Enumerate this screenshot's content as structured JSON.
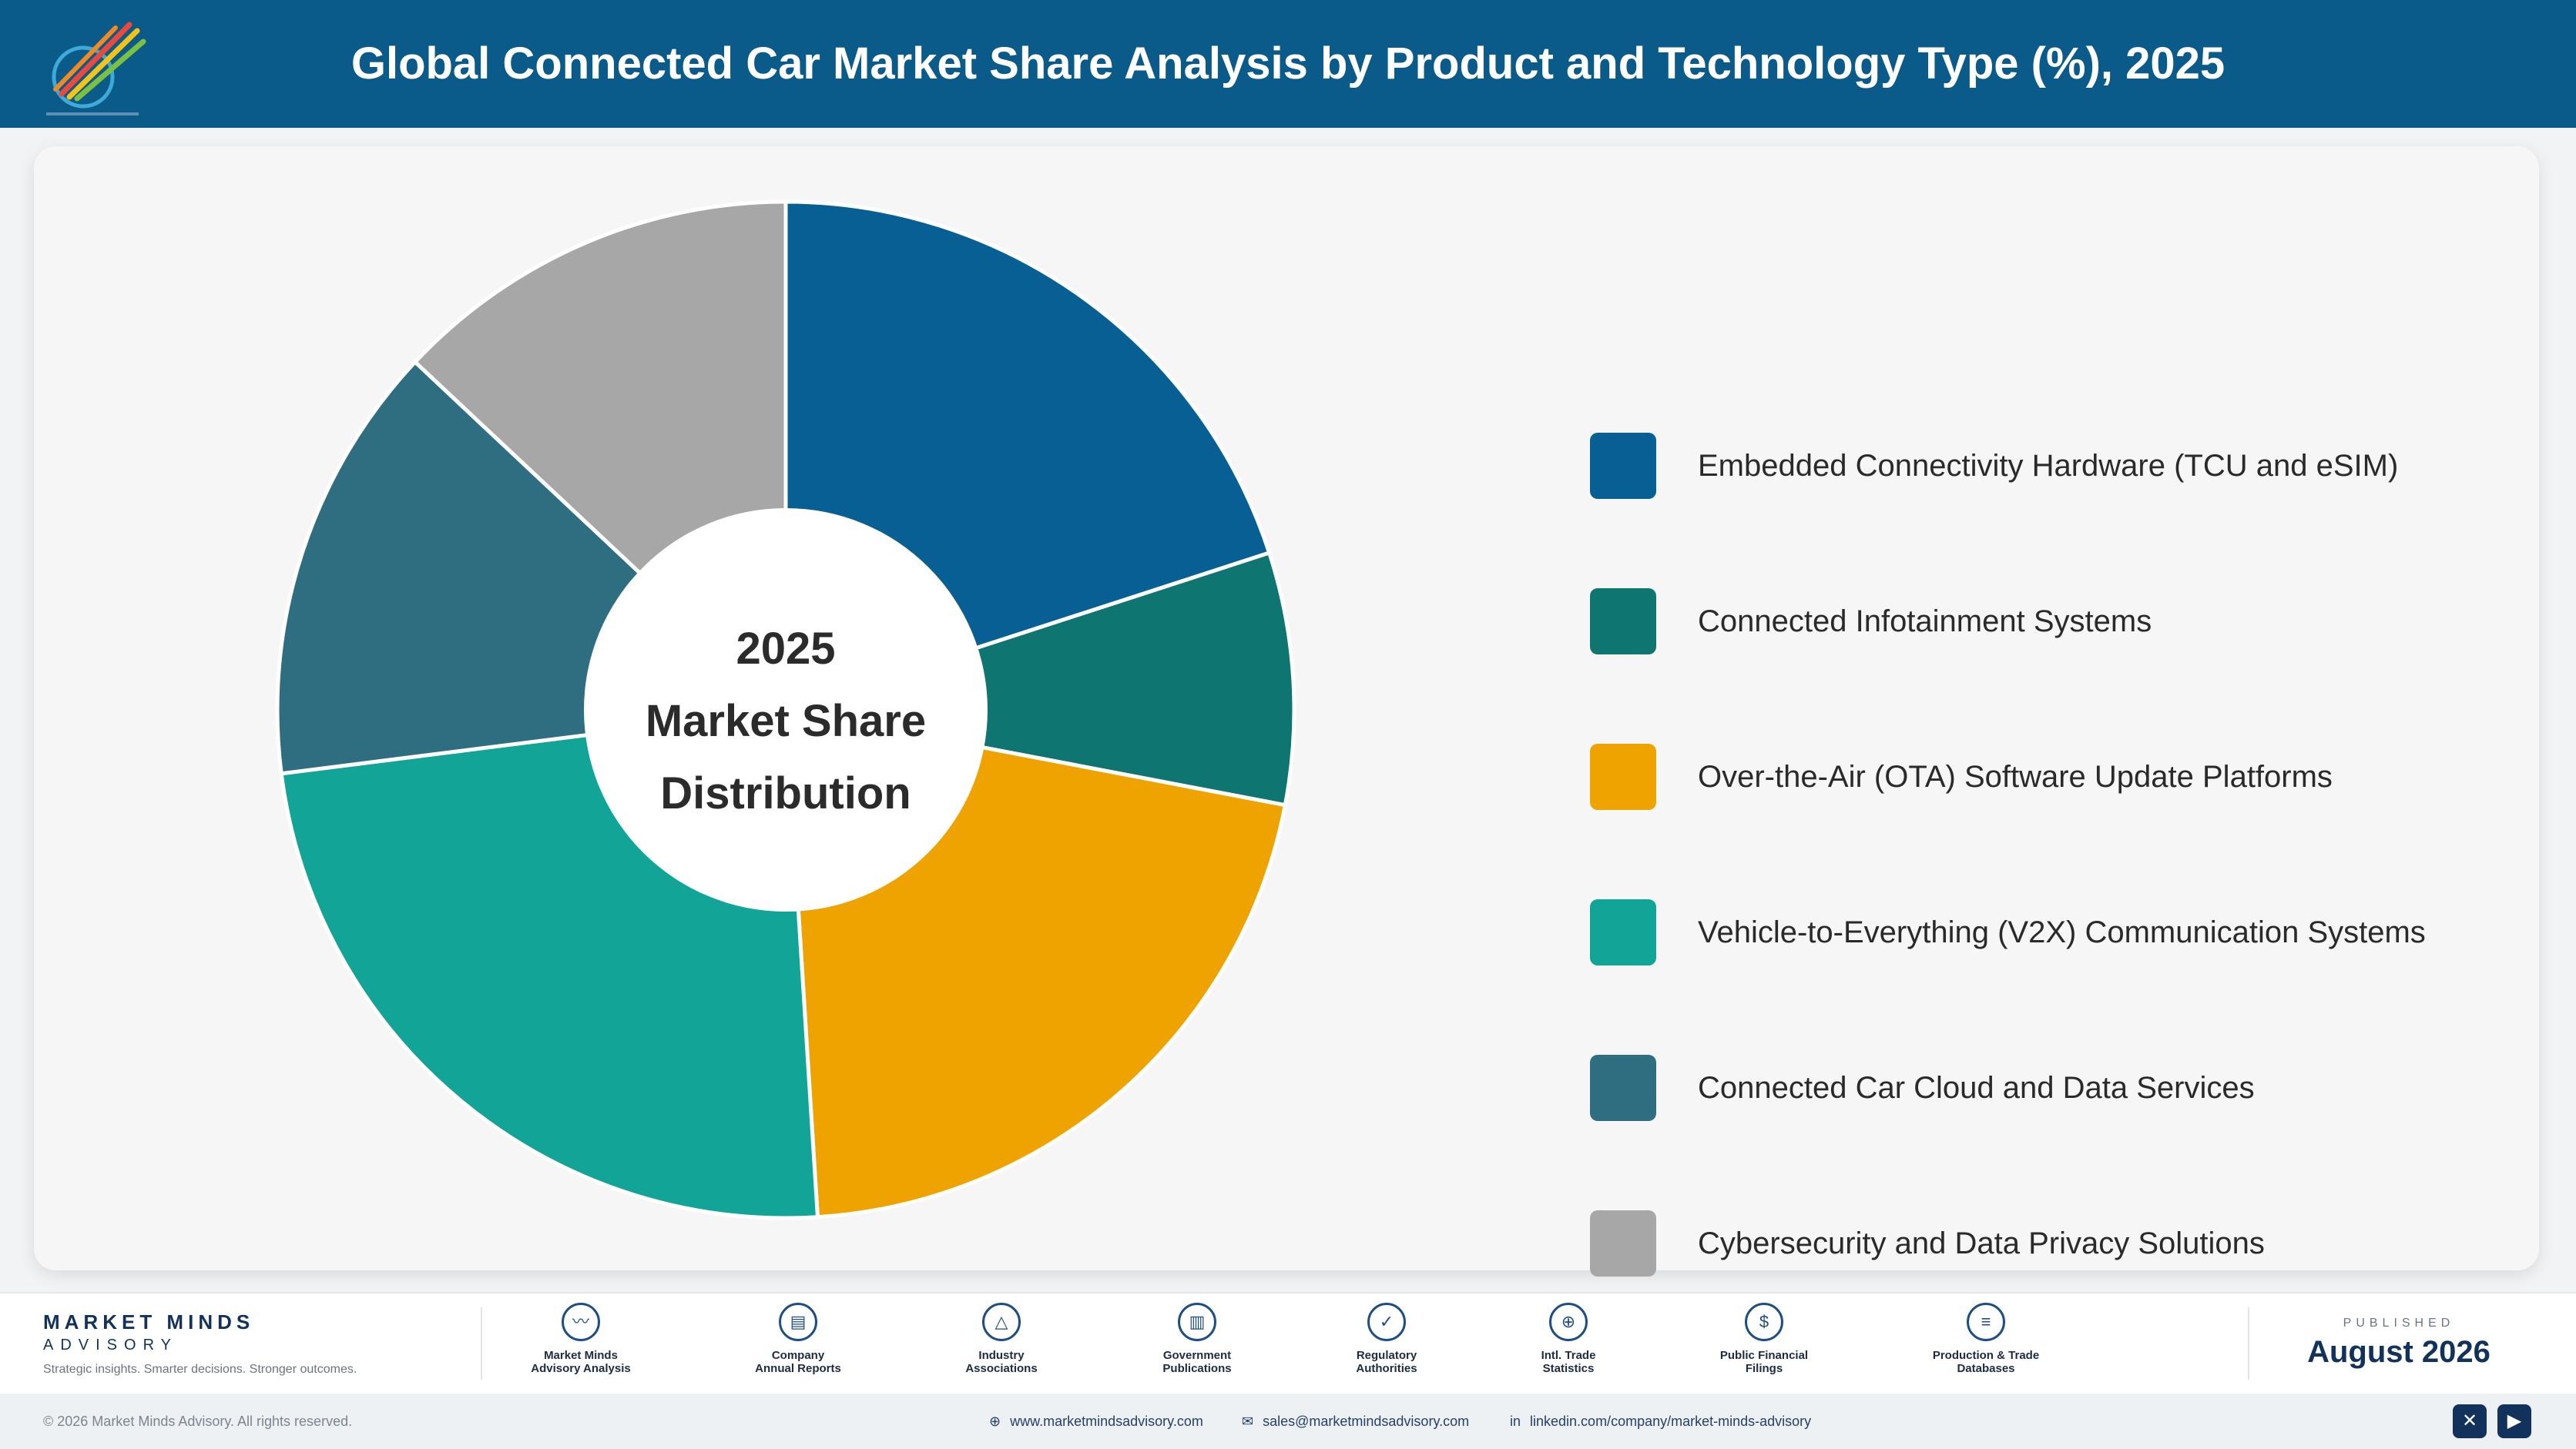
{
  "header": {
    "title": "Global Connected Car Market Share Analysis by Product and Technology Type (%), 2025"
  },
  "chart_data": {
    "type": "pie",
    "title": "Global Connected Car Market Share Analysis by Product and Technology Type (%), 2025",
    "center_label": [
      "2025",
      "Market Share",
      "Distribution"
    ],
    "categories": [
      "Embedded Connectivity Hardware (TCU and eSIM)",
      "Connected Infotainment Systems",
      "Over-the-Air (OTA) Software Update Platforms",
      "Vehicle-to-Everything (V2X) Communication Systems",
      "Connected Car Cloud and Data Services",
      "Cybersecurity and Data Privacy Solutions"
    ],
    "values": [
      20,
      8,
      21,
      24,
      14,
      13
    ],
    "colors": [
      "#075f94",
      "#0e7571",
      "#efa300",
      "#12a496",
      "#2f6e80",
      "#a7a7a7"
    ],
    "legend_position": "right"
  },
  "footer": {
    "brand_name": "MARKET MINDS",
    "brand_sub": "ADVISORY",
    "brand_tagline": "Strategic insights. Smarter decisions. Stronger outcomes.",
    "sources": [
      {
        "label": "Market Minds\nAdvisory Analysis",
        "icon": "chart-line-icon",
        "glyph": "〰"
      },
      {
        "label": "Company\nAnnual Reports",
        "icon": "document-icon",
        "glyph": "▤"
      },
      {
        "label": "Industry\nAssociations",
        "icon": "network-icon",
        "glyph": "△"
      },
      {
        "label": "Government\nPublications",
        "icon": "building-icon",
        "glyph": "▥"
      },
      {
        "label": "Regulatory\nAuthorities",
        "icon": "shield-icon",
        "glyph": "✓"
      },
      {
        "label": "Intl. Trade\nStatistics",
        "icon": "globe-icon",
        "glyph": "⊕"
      },
      {
        "label": "Public Financial\nFilings",
        "icon": "dollar-icon",
        "glyph": "$"
      },
      {
        "label": "Production & Trade\nDatabases",
        "icon": "database-icon",
        "glyph": "≡"
      }
    ],
    "published_label": "PUBLISHED",
    "published_date": "August 2026",
    "copyright": "© 2026 Market Minds Advisory. All rights reserved.",
    "website": "www.marketmindsadvisory.com",
    "email": "sales@marketmindsadvisory.com",
    "linkedin": "linkedin.com/company/market-minds-advisory",
    "social": [
      {
        "icon": "x-icon",
        "glyph": "✕"
      },
      {
        "icon": "youtube-icon",
        "glyph": "▶"
      }
    ]
  }
}
